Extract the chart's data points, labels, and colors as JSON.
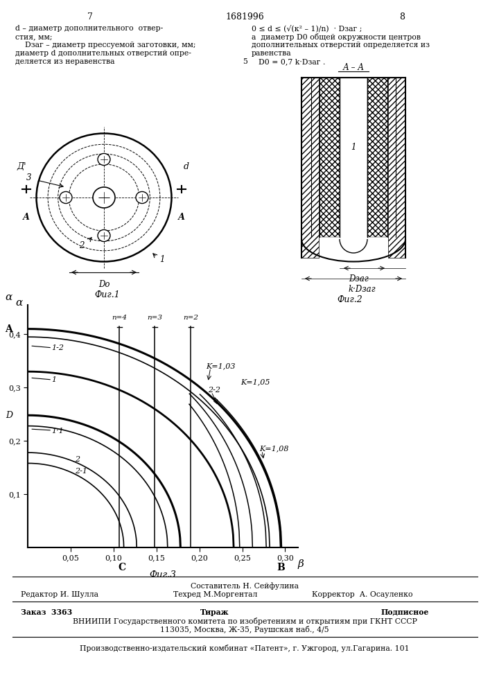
{
  "page_numbers": [
    "7",
    "1681996",
    "8"
  ],
  "text_left_lines": [
    "d – диаметр дополнительного  отвер-",
    "стия, мм;",
    "    Dзаг – диаметр прессуемой заготовки, мм;",
    "диаметр d дополнительных отверстий опре-",
    "деляется из неравенства"
  ],
  "text_right_lines": [
    "0 ≤ d ≤ (√(к² – 1)/n)  · Dзаг ;",
    "а  диаметр D0 общей окружности центров",
    "дополнительных отверстий определяется из",
    "равенства",
    "D0 = 0,7 k·Dзаг ."
  ],
  "num5": "5",
  "fig1_label": "Фиг.1",
  "fig2_label": "Фиг.2",
  "fig3_label": "Фиг.3",
  "section_label": "А – А",
  "graph_xlabel": "β",
  "graph_ylabel": "α",
  "graph_xtick_labels": [
    "0,05",
    "0,10",
    "0,15",
    "0,20",
    "0,25",
    "0,30"
  ],
  "graph_xticks": [
    0.05,
    0.1,
    0.15,
    0.2,
    0.25,
    0.3
  ],
  "graph_ytick_labels": [
    "0,1",
    "0,2",
    "0,3",
    "0,4"
  ],
  "graph_yticks": [
    0.1,
    0.2,
    0.3,
    0.4
  ],
  "footer_composer": "Составитель Н. Сейфулина",
  "footer_editor": "Редактор И. Шулла",
  "footer_tech": "Техред М.Моргентал",
  "footer_corrector": "Корректор  А. Осауленко",
  "footer_order": "Заказ  3363",
  "footer_tirazh": "Тираж",
  "footer_podpisnoe": "Подписное",
  "footer_vniip": "ВНИИПИ Государственного комитета по изобретениям и открытиям при ГКНТ СССР",
  "footer_addr": "113035, Москва, Ж-35, Раушская наб., 4/5",
  "footer_patent": "Производственно-издательский комбинат «Патент», г. Ужгород, ул.Гагарина. 101"
}
